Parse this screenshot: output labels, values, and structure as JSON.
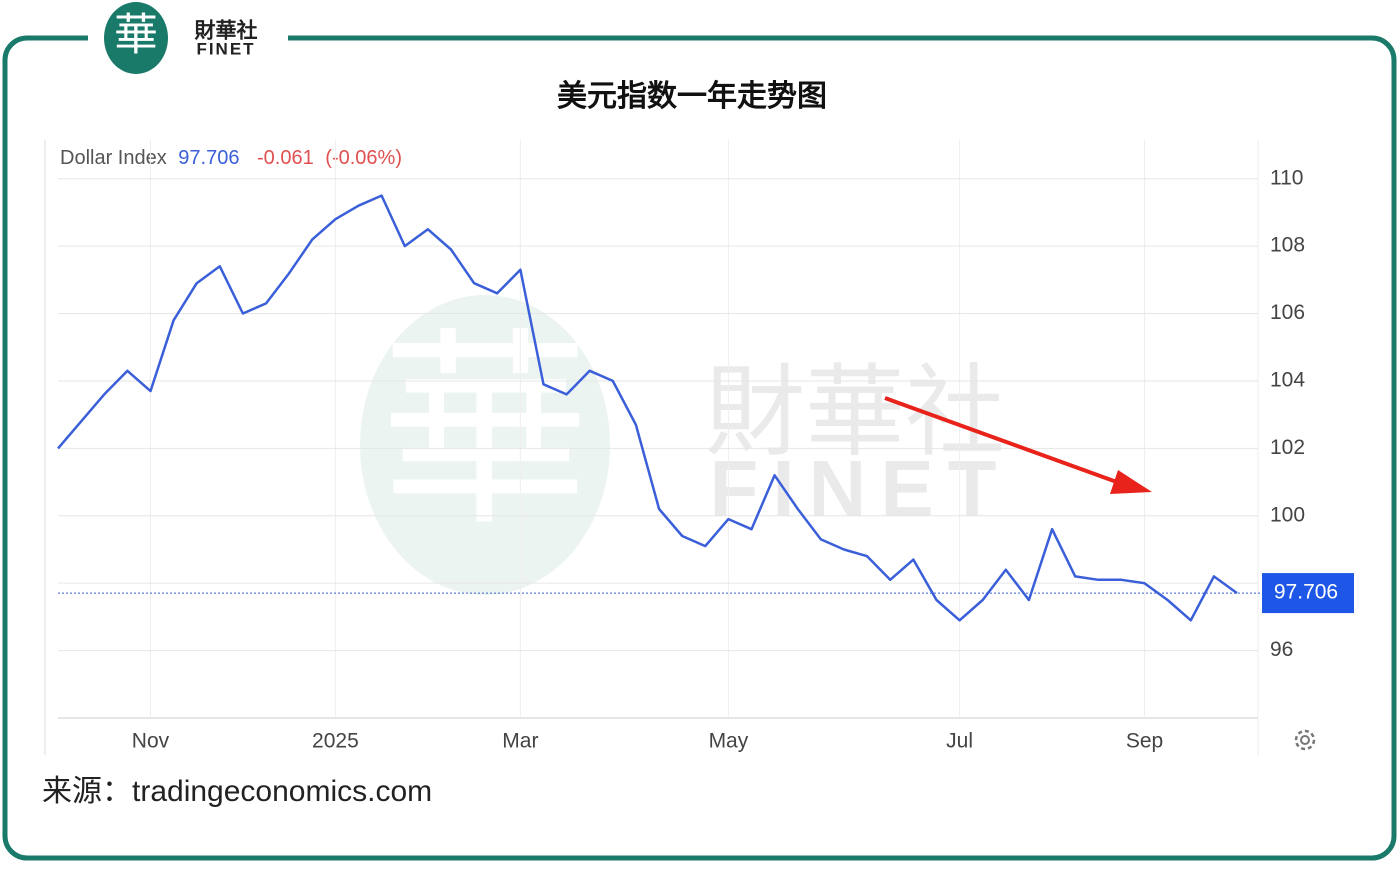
{
  "brand": {
    "logo_char": "華",
    "cn": "財華社",
    "en": "FINET"
  },
  "source": "来源：tradingeconomics.com",
  "chart_data": {
    "type": "line",
    "title": "美元指数一年走势图",
    "header": {
      "name": "Dollar Index",
      "last": 97.706,
      "change": -0.061,
      "change_pct": "(-0.06%)"
    },
    "categories": [
      null,
      null,
      null,
      null,
      "Nov",
      null,
      null,
      null,
      null,
      null,
      null,
      null,
      "2025",
      null,
      null,
      null,
      null,
      null,
      null,
      null,
      "Mar",
      null,
      null,
      null,
      null,
      null,
      null,
      null,
      null,
      "May",
      null,
      null,
      null,
      null,
      null,
      null,
      null,
      null,
      null,
      "Jul",
      null,
      null,
      null,
      null,
      null,
      null,
      null,
      "Sep",
      null,
      null,
      null,
      null
    ],
    "series": [
      {
        "name": "Dollar Index",
        "color": "#3a5fd9",
        "values": [
          102.0,
          102.8,
          103.6,
          104.3,
          103.7,
          105.8,
          106.9,
          107.4,
          106.0,
          106.3,
          107.2,
          108.2,
          108.8,
          109.2,
          109.5,
          108.0,
          108.5,
          107.9,
          106.9,
          106.6,
          107.3,
          103.9,
          103.6,
          104.3,
          104.0,
          102.7,
          100.2,
          99.4,
          99.1,
          99.9,
          99.6,
          101.2,
          100.2,
          99.3,
          99.0,
          98.8,
          98.1,
          98.7,
          97.5,
          96.9,
          97.5,
          98.4,
          97.5,
          99.6,
          98.2,
          98.1,
          98.1,
          98.0,
          97.5,
          96.9,
          98.2,
          97.706
        ]
      }
    ],
    "ylim": [
      94,
      111
    ],
    "yticks": [
      96,
      98,
      100,
      102,
      104,
      106,
      108,
      110
    ],
    "grid": true
  }
}
